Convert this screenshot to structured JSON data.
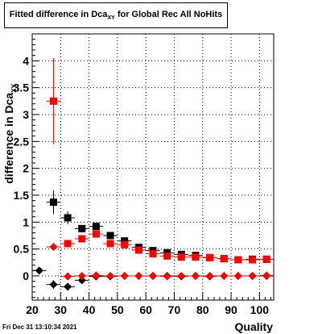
{
  "chart_data": {
    "type": "scatter",
    "title_main": "Fitted difference in Dca",
    "title_sub": "XY",
    "title_rest": " for Global Rec All NoHits",
    "xlabel": "Quality",
    "ylabel_main": "difference in Dca",
    "ylabel_sub": "XY",
    "xlim": [
      20,
      105
    ],
    "ylim": [
      -0.45,
      4.5
    ],
    "xticks": [
      20,
      30,
      40,
      50,
      60,
      70,
      80,
      90,
      100
    ],
    "yticks": [
      0,
      0.5,
      1,
      1.5,
      2,
      2.5,
      3,
      3.5,
      4
    ],
    "grid": true,
    "series": [
      {
        "marker": "square",
        "color": "#000000",
        "points": [
          {
            "x": 27.5,
            "y": 1.37,
            "err": 0.22
          },
          {
            "x": 32.5,
            "y": 1.08,
            "err": 0.12
          },
          {
            "x": 37.5,
            "y": 0.88,
            "err": 0.06
          },
          {
            "x": 42.5,
            "y": 0.92,
            "err": 0.05
          },
          {
            "x": 47.5,
            "y": 0.75,
            "err": 0.04
          },
          {
            "x": 52.5,
            "y": 0.65,
            "err": 0.03
          },
          {
            "x": 57.5,
            "y": 0.53,
            "err": 0.03
          },
          {
            "x": 62.5,
            "y": 0.47,
            "err": 0.02
          },
          {
            "x": 67.5,
            "y": 0.43,
            "err": 0.02
          },
          {
            "x": 72.5,
            "y": 0.4,
            "err": 0.02
          },
          {
            "x": 77.5,
            "y": 0.38,
            "err": 0.02
          },
          {
            "x": 82.5,
            "y": 0.34,
            "err": 0.02
          },
          {
            "x": 87.5,
            "y": 0.32,
            "err": 0.02
          },
          {
            "x": 92.5,
            "y": 0.3,
            "err": 0.02
          },
          {
            "x": 97.5,
            "y": 0.31,
            "err": 0.02
          },
          {
            "x": 102.5,
            "y": 0.31,
            "err": 0.02
          }
        ]
      },
      {
        "marker": "square",
        "color": "#ff0000",
        "points": [
          {
            "x": 27.5,
            "y": 3.25,
            "err": 0.8
          },
          {
            "x": 32.5,
            "y": 0.6,
            "err": 0.05
          },
          {
            "x": 37.5,
            "y": 0.69,
            "err": 0.04
          },
          {
            "x": 42.5,
            "y": 0.78,
            "err": 0.04
          },
          {
            "x": 47.5,
            "y": 0.6,
            "err": 0.03
          },
          {
            "x": 52.5,
            "y": 0.58,
            "err": 0.03
          },
          {
            "x": 57.5,
            "y": 0.48,
            "err": 0.02
          },
          {
            "x": 62.5,
            "y": 0.41,
            "err": 0.02
          },
          {
            "x": 67.5,
            "y": 0.37,
            "err": 0.02
          },
          {
            "x": 72.5,
            "y": 0.35,
            "err": 0.02
          },
          {
            "x": 77.5,
            "y": 0.35,
            "err": 0.02
          },
          {
            "x": 82.5,
            "y": 0.34,
            "err": 0.02
          },
          {
            "x": 87.5,
            "y": 0.32,
            "err": 0.02
          },
          {
            "x": 92.5,
            "y": 0.3,
            "err": 0.02
          },
          {
            "x": 97.5,
            "y": 0.3,
            "err": 0.02
          },
          {
            "x": 102.5,
            "y": 0.31,
            "err": 0.02
          }
        ]
      },
      {
        "marker": "diamond",
        "color": "#000000",
        "points": [
          {
            "x": 22.5,
            "y": 0.1,
            "err": 0.04
          },
          {
            "x": 27.5,
            "y": -0.16,
            "err": 0.08
          },
          {
            "x": 32.5,
            "y": -0.2,
            "err": 0.04
          },
          {
            "x": 37.5,
            "y": -0.08,
            "err": 0.03
          },
          {
            "x": 42.5,
            "y": -0.01,
            "err": 0.02
          },
          {
            "x": 47.5,
            "y": -0.01,
            "err": 0.02
          },
          {
            "x": 52.5,
            "y": 0.0,
            "err": 0.02
          },
          {
            "x": 57.5,
            "y": 0.0,
            "err": 0.02
          },
          {
            "x": 62.5,
            "y": 0.0,
            "err": 0.02
          },
          {
            "x": 67.5,
            "y": 0.0,
            "err": 0.02
          },
          {
            "x": 72.5,
            "y": -0.01,
            "err": 0.02
          },
          {
            "x": 77.5,
            "y": 0.0,
            "err": 0.02
          },
          {
            "x": 82.5,
            "y": -0.01,
            "err": 0.02
          },
          {
            "x": 87.5,
            "y": 0.0,
            "err": 0.02
          },
          {
            "x": 92.5,
            "y": 0.0,
            "err": 0.02
          },
          {
            "x": 97.5,
            "y": 0.0,
            "err": 0.02
          },
          {
            "x": 102.5,
            "y": 0.0,
            "err": 0.02
          }
        ]
      },
      {
        "marker": "diamond",
        "color": "#ff0000",
        "points": [
          {
            "x": 27.5,
            "y": 0.54,
            "err": 0.05
          },
          {
            "x": 32.5,
            "y": -0.01,
            "err": 0.03
          },
          {
            "x": 37.5,
            "y": 0.0,
            "err": 0.02
          },
          {
            "x": 42.5,
            "y": 0.01,
            "err": 0.02
          },
          {
            "x": 47.5,
            "y": 0.0,
            "err": 0.02
          },
          {
            "x": 52.5,
            "y": 0.0,
            "err": 0.02
          },
          {
            "x": 57.5,
            "y": 0.0,
            "err": 0.02
          },
          {
            "x": 62.5,
            "y": 0.0,
            "err": 0.02
          },
          {
            "x": 67.5,
            "y": -0.01,
            "err": 0.02
          },
          {
            "x": 72.5,
            "y": 0.0,
            "err": 0.02
          },
          {
            "x": 77.5,
            "y": 0.0,
            "err": 0.02
          },
          {
            "x": 82.5,
            "y": 0.0,
            "err": 0.02
          },
          {
            "x": 87.5,
            "y": 0.0,
            "err": 0.02
          },
          {
            "x": 92.5,
            "y": 0.0,
            "err": 0.02
          },
          {
            "x": 97.5,
            "y": 0.0,
            "err": 0.02
          },
          {
            "x": 102.5,
            "y": 0.01,
            "err": 0.02
          }
        ]
      }
    ]
  },
  "footer": "Fri Dec 31 13:10:34 2021"
}
